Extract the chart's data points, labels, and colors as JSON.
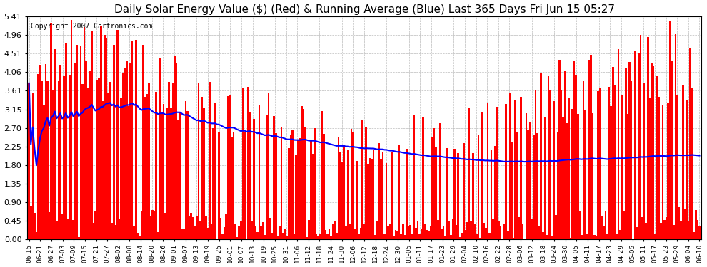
{
  "title": "Daily Solar Energy Value ($) (Red) & Running Average (Blue) Last 365 Days Fri Jun 15 05:27",
  "copyright": "Copyright 2007 Cartronics.com",
  "yticks": [
    0.0,
    0.45,
    0.9,
    1.35,
    1.8,
    2.25,
    2.7,
    3.15,
    3.61,
    4.06,
    4.51,
    4.96,
    5.41
  ],
  "ylim": [
    0,
    5.41
  ],
  "bar_color": "#ff0000",
  "line_color": "#0000ff",
  "bg_color": "#ffffff",
  "grid_color": "#bbbbbb",
  "title_fontsize": 11,
  "copyright_fontsize": 7,
  "xtick_labels": [
    "06-15",
    "06-21",
    "06-27",
    "07-03",
    "07-09",
    "07-15",
    "07-21",
    "07-27",
    "08-02",
    "08-08",
    "08-14",
    "08-20",
    "08-26",
    "09-01",
    "09-07",
    "09-13",
    "09-19",
    "09-25",
    "10-01",
    "10-07",
    "10-13",
    "10-19",
    "10-25",
    "10-31",
    "11-06",
    "11-12",
    "11-18",
    "11-24",
    "11-30",
    "12-06",
    "12-12",
    "12-18",
    "12-24",
    "12-30",
    "01-05",
    "01-11",
    "01-17",
    "01-23",
    "01-29",
    "02-04",
    "02-10",
    "02-16",
    "02-22",
    "02-28",
    "03-06",
    "03-12",
    "03-18",
    "03-24",
    "03-30",
    "04-05",
    "04-11",
    "04-17",
    "04-23",
    "04-29",
    "05-05",
    "05-11",
    "05-17",
    "05-23",
    "05-29",
    "06-04",
    "06-10"
  ]
}
